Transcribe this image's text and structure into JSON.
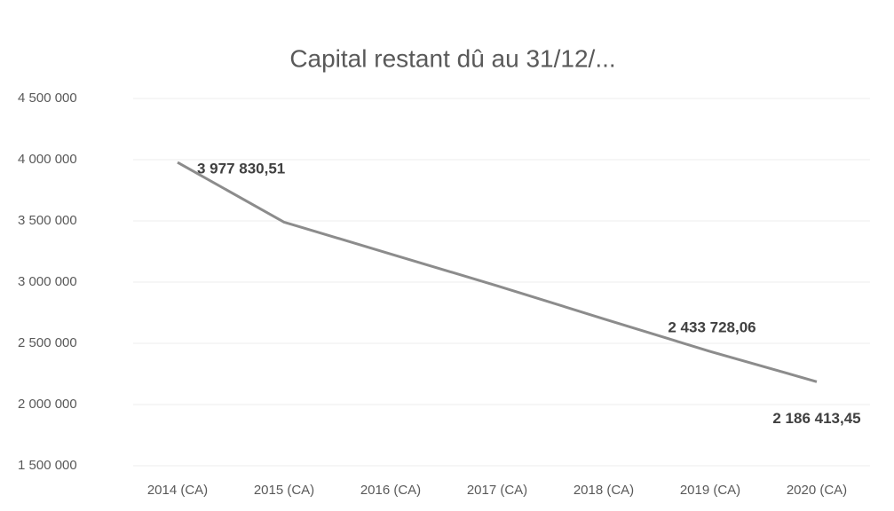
{
  "chart_data": {
    "type": "line",
    "title": "Capital restant dû au 31/12/...",
    "categories": [
      "2014 (CA)",
      "2015 (CA)",
      "2016 (CA)",
      "2017 (CA)",
      "2018 (CA)",
      "2019 (CA)",
      "2020 (CA)"
    ],
    "series": [
      {
        "name": "Capital restant dû",
        "color": "#8c8c8c",
        "values": [
          3977830.51,
          3490000,
          3230000,
          2970000,
          2700000,
          2433728.06,
          2186413.45
        ],
        "value_labels": [
          "3 977 830,51",
          null,
          null,
          null,
          null,
          "2 433 728,06",
          "2 186 413,45"
        ]
      }
    ],
    "ylim": [
      1500000,
      4500000
    ],
    "yticks": [
      {
        "value": 1500000,
        "label": "1 500 000"
      },
      {
        "value": 2000000,
        "label": "2 000 000"
      },
      {
        "value": 2500000,
        "label": "2 500 000"
      },
      {
        "value": 3000000,
        "label": "3 000 000"
      },
      {
        "value": 3500000,
        "label": "3 500 000"
      },
      {
        "value": 4000000,
        "label": "4 000 000"
      },
      {
        "value": 4500000,
        "label": "4 500 000"
      }
    ],
    "grid": true
  }
}
